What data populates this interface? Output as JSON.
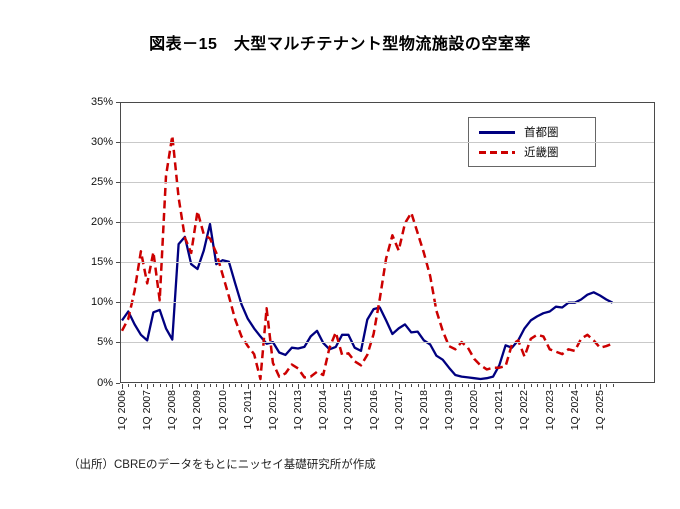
{
  "title": "図表－15　大型マルチテナント型物流施設の空室率",
  "source_note": "（出所）CBREのデータをもとにニッセイ基礎研究所が作成",
  "colors": {
    "shutoken_line": "#000080",
    "kinki_line": "#cc0000",
    "gridline": "#c9c9c9",
    "frame": "#4a4a4a"
  },
  "legend": {
    "items": [
      {
        "label": "首都圏",
        "style": "solid"
      },
      {
        "label": "近畿圏",
        "style": "dashed"
      }
    ]
  },
  "chart_data": {
    "type": "line",
    "title": "図表－15　大型マルチテナント型物流施設の空室率",
    "xlabel": "",
    "ylabel": "",
    "ylim": [
      0,
      35
    ],
    "y_tick_labels": [
      "0%",
      "5%",
      "10%",
      "15%",
      "20%",
      "25%",
      "30%",
      "35%"
    ],
    "grid": "horizontal",
    "legend_position": "top-right-inside",
    "x_frequency": "quarterly",
    "x_start": "1Q 2006",
    "x_end": "3Q 2025",
    "x_tick_labels": [
      "1Q 2006",
      "1Q 2007",
      "1Q 2008",
      "1Q 2009",
      "1Q 2010",
      "1Q 2011",
      "1Q 2012",
      "1Q 2013",
      "1Q 2014",
      "1Q 2015",
      "1Q 2016",
      "1Q 2017",
      "1Q 2018",
      "1Q 2019",
      "1Q 2020",
      "1Q 2021",
      "1Q 2022",
      "1Q 2023",
      "1Q 2024",
      "1Q 2025"
    ],
    "unit": "percent",
    "series": [
      {
        "name": "首都圏",
        "color": "#000080",
        "style": "solid",
        "values": [
          7.8,
          8.9,
          7.3,
          6.0,
          5.3,
          8.8,
          9.1,
          6.8,
          5.4,
          17.3,
          18.2,
          14.8,
          14.2,
          16.5,
          19.8,
          14.8,
          15.3,
          15.1,
          12.4,
          9.8,
          8.0,
          6.8,
          5.8,
          4.9,
          5.1,
          3.8,
          3.5,
          4.4,
          4.3,
          4.5,
          5.8,
          6.5,
          5.0,
          4.2,
          4.5,
          6.0,
          6.0,
          4.4,
          4.0,
          7.9,
          9.2,
          9.4,
          7.8,
          6.1,
          6.8,
          7.3,
          6.3,
          6.4,
          5.3,
          4.8,
          3.4,
          2.9,
          1.9,
          1.0,
          0.8,
          0.7,
          0.6,
          0.5,
          0.6,
          0.8,
          2.2,
          4.7,
          4.4,
          5.3,
          6.8,
          7.8,
          8.3,
          8.7,
          8.9,
          9.5,
          9.4,
          10.0,
          10.0,
          10.4,
          11.0,
          11.3,
          10.9,
          10.4,
          10.0
        ]
      },
      {
        "name": "近畿圏",
        "color": "#cc0000",
        "style": "dashed",
        "values": [
          6.5,
          8.0,
          11.5,
          16.4,
          12.4,
          16.3,
          10.3,
          25.8,
          30.8,
          23.1,
          18.1,
          16.2,
          21.4,
          18.5,
          18.0,
          16.2,
          13.5,
          10.8,
          7.9,
          5.8,
          4.6,
          3.6,
          0.5,
          9.3,
          2.5,
          0.8,
          1.2,
          2.3,
          1.8,
          0.7,
          0.8,
          1.4,
          1.0,
          4.4,
          6.3,
          3.5,
          3.7,
          2.7,
          2.2,
          3.5,
          6.1,
          10.5,
          15.5,
          18.4,
          16.5,
          19.9,
          21.2,
          18.7,
          16.2,
          13.3,
          9.0,
          6.5,
          4.6,
          4.2,
          5.1,
          4.4,
          3.0,
          2.2,
          1.7,
          1.9,
          1.9,
          2.1,
          4.8,
          5.3,
          3.3,
          5.5,
          6.0,
          5.8,
          4.2,
          3.9,
          3.6,
          4.2,
          4.0,
          5.5,
          6.0,
          5.3,
          4.4,
          4.6,
          4.9
        ]
      }
    ]
  }
}
